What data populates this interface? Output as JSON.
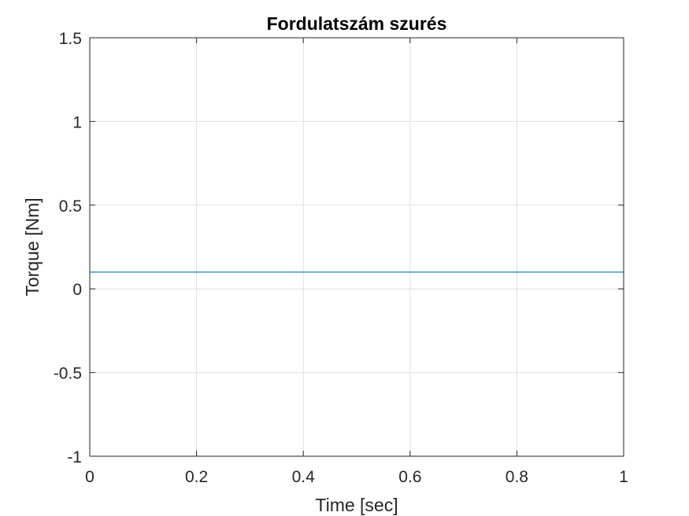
{
  "chart_data": {
    "type": "line",
    "title": "Fordulatszám szurés",
    "xlabel": "Time [sec]",
    "ylabel": "Torque [Nm]",
    "xlim": [
      0,
      1
    ],
    "ylim": [
      -1,
      1.5
    ],
    "xticks": [
      0,
      0.2,
      0.4,
      0.6,
      0.8,
      1
    ],
    "xtick_labels": [
      "0",
      "0.2",
      "0.4",
      "0.6",
      "0.8",
      "1"
    ],
    "yticks": [
      -1,
      -0.5,
      0,
      0.5,
      1,
      1.5
    ],
    "ytick_labels": [
      "-1",
      "-0.5",
      "0",
      "0.5",
      "1",
      "1.5"
    ],
    "grid": true,
    "series": [
      {
        "color": "#0072bd",
        "x": [
          0,
          1
        ],
        "y": [
          0.1,
          0.1
        ]
      }
    ]
  }
}
